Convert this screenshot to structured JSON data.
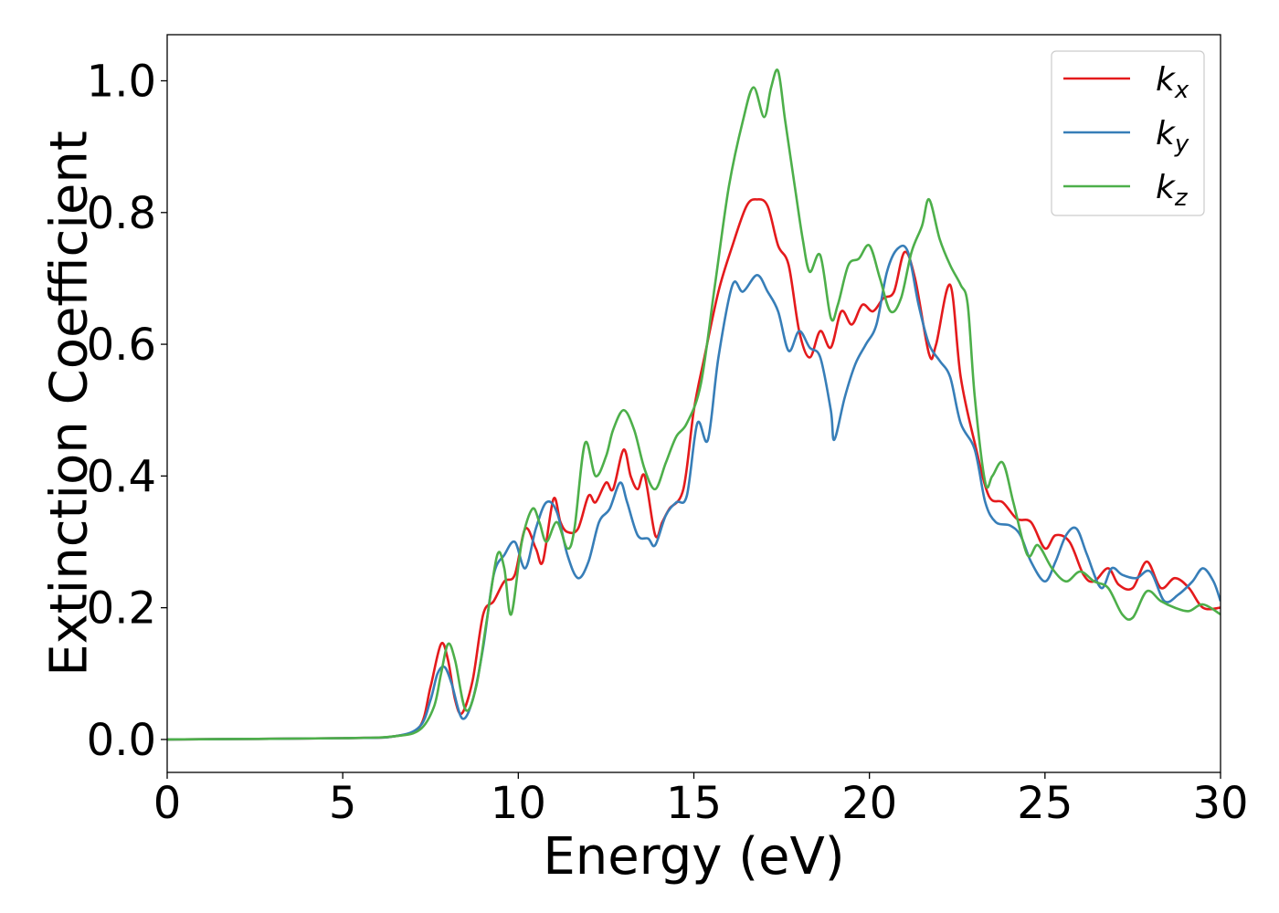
{
  "chart_data": {
    "type": "line",
    "title": "",
    "xlabel": "Energy (eV)",
    "ylabel": "Extinction Coefficient",
    "xlim": [
      0,
      30
    ],
    "ylim": [
      -0.05,
      1.07
    ],
    "xticks": [
      0,
      5,
      10,
      15,
      20,
      25,
      30
    ],
    "xtick_labels": [
      "0",
      "5",
      "10",
      "15",
      "20",
      "25",
      "30"
    ],
    "yticks": [
      0.0,
      0.2,
      0.4,
      0.6,
      0.8,
      1.0
    ],
    "ytick_labels": [
      "0.0",
      "0.2",
      "0.4",
      "0.6",
      "0.8",
      "1.0"
    ],
    "grid": false,
    "legend_position": "top-right",
    "series": [
      {
        "name": "k_x",
        "label_base": "k",
        "label_sub": "x",
        "color": "#e41a1c",
        "points": [
          [
            0,
            0
          ],
          [
            5,
            0.002
          ],
          [
            6.5,
            0.005
          ],
          [
            7.2,
            0.02
          ],
          [
            7.5,
            0.08
          ],
          [
            7.8,
            0.145
          ],
          [
            8.0,
            0.12
          ],
          [
            8.2,
            0.06
          ],
          [
            8.4,
            0.04
          ],
          [
            8.7,
            0.09
          ],
          [
            9.0,
            0.19
          ],
          [
            9.3,
            0.21
          ],
          [
            9.6,
            0.24
          ],
          [
            9.9,
            0.25
          ],
          [
            10.2,
            0.32
          ],
          [
            10.5,
            0.29
          ],
          [
            10.7,
            0.27
          ],
          [
            11.0,
            0.365
          ],
          [
            11.2,
            0.33
          ],
          [
            11.4,
            0.315
          ],
          [
            11.7,
            0.32
          ],
          [
            12.0,
            0.37
          ],
          [
            12.2,
            0.36
          ],
          [
            12.5,
            0.39
          ],
          [
            12.7,
            0.38
          ],
          [
            13.0,
            0.44
          ],
          [
            13.2,
            0.4
          ],
          [
            13.4,
            0.38
          ],
          [
            13.6,
            0.4
          ],
          [
            13.9,
            0.31
          ],
          [
            14.1,
            0.33
          ],
          [
            14.3,
            0.35
          ],
          [
            14.7,
            0.38
          ],
          [
            15.0,
            0.5
          ],
          [
            15.3,
            0.58
          ],
          [
            15.7,
            0.68
          ],
          [
            16.1,
            0.75
          ],
          [
            16.5,
            0.81
          ],
          [
            16.8,
            0.82
          ],
          [
            17.1,
            0.81
          ],
          [
            17.4,
            0.75
          ],
          [
            17.7,
            0.72
          ],
          [
            18.0,
            0.62
          ],
          [
            18.3,
            0.58
          ],
          [
            18.6,
            0.62
          ],
          [
            18.9,
            0.595
          ],
          [
            19.2,
            0.65
          ],
          [
            19.5,
            0.63
          ],
          [
            19.8,
            0.66
          ],
          [
            20.1,
            0.65
          ],
          [
            20.4,
            0.67
          ],
          [
            20.7,
            0.68
          ],
          [
            21.0,
            0.74
          ],
          [
            21.3,
            0.7
          ],
          [
            21.7,
            0.585
          ],
          [
            21.9,
            0.6
          ],
          [
            22.3,
            0.69
          ],
          [
            22.6,
            0.55
          ],
          [
            23.0,
            0.45
          ],
          [
            23.4,
            0.37
          ],
          [
            23.8,
            0.36
          ],
          [
            24.2,
            0.335
          ],
          [
            24.6,
            0.33
          ],
          [
            25.0,
            0.29
          ],
          [
            25.3,
            0.31
          ],
          [
            25.7,
            0.3
          ],
          [
            26.1,
            0.25
          ],
          [
            26.4,
            0.24
          ],
          [
            26.8,
            0.26
          ],
          [
            27.1,
            0.235
          ],
          [
            27.5,
            0.23
          ],
          [
            27.9,
            0.27
          ],
          [
            28.3,
            0.23
          ],
          [
            28.7,
            0.245
          ],
          [
            29.1,
            0.23
          ],
          [
            29.5,
            0.2
          ],
          [
            30.0,
            0.2
          ]
        ]
      },
      {
        "name": "k_y",
        "label_base": "k",
        "label_sub": "y",
        "color": "#377eb8",
        "points": [
          [
            0,
            0
          ],
          [
            5,
            0.002
          ],
          [
            6.5,
            0.005
          ],
          [
            7.2,
            0.02
          ],
          [
            7.5,
            0.06
          ],
          [
            7.7,
            0.1
          ],
          [
            7.9,
            0.11
          ],
          [
            8.1,
            0.085
          ],
          [
            8.4,
            0.032
          ],
          [
            8.7,
            0.06
          ],
          [
            9.0,
            0.14
          ],
          [
            9.3,
            0.25
          ],
          [
            9.6,
            0.28
          ],
          [
            9.9,
            0.3
          ],
          [
            10.2,
            0.26
          ],
          [
            10.5,
            0.32
          ],
          [
            10.8,
            0.36
          ],
          [
            11.1,
            0.345
          ],
          [
            11.4,
            0.28
          ],
          [
            11.7,
            0.245
          ],
          [
            12.0,
            0.27
          ],
          [
            12.3,
            0.33
          ],
          [
            12.6,
            0.35
          ],
          [
            12.9,
            0.39
          ],
          [
            13.1,
            0.36
          ],
          [
            13.4,
            0.31
          ],
          [
            13.7,
            0.305
          ],
          [
            13.9,
            0.295
          ],
          [
            14.2,
            0.34
          ],
          [
            14.5,
            0.36
          ],
          [
            14.8,
            0.37
          ],
          [
            15.1,
            0.48
          ],
          [
            15.4,
            0.455
          ],
          [
            15.7,
            0.58
          ],
          [
            16.1,
            0.69
          ],
          [
            16.4,
            0.68
          ],
          [
            16.8,
            0.705
          ],
          [
            17.1,
            0.68
          ],
          [
            17.4,
            0.65
          ],
          [
            17.7,
            0.59
          ],
          [
            18.0,
            0.62
          ],
          [
            18.3,
            0.595
          ],
          [
            18.6,
            0.58
          ],
          [
            18.9,
            0.5
          ],
          [
            19.0,
            0.455
          ],
          [
            19.3,
            0.52
          ],
          [
            19.6,
            0.57
          ],
          [
            19.9,
            0.6
          ],
          [
            20.2,
            0.63
          ],
          [
            20.5,
            0.71
          ],
          [
            20.8,
            0.745
          ],
          [
            21.1,
            0.74
          ],
          [
            21.4,
            0.66
          ],
          [
            21.7,
            0.6
          ],
          [
            22.0,
            0.575
          ],
          [
            22.3,
            0.55
          ],
          [
            22.6,
            0.48
          ],
          [
            23.0,
            0.44
          ],
          [
            23.3,
            0.36
          ],
          [
            23.6,
            0.33
          ],
          [
            24.0,
            0.325
          ],
          [
            24.3,
            0.31
          ],
          [
            24.6,
            0.27
          ],
          [
            25.0,
            0.24
          ],
          [
            25.3,
            0.27
          ],
          [
            25.6,
            0.31
          ],
          [
            25.9,
            0.32
          ],
          [
            26.2,
            0.28
          ],
          [
            26.6,
            0.23
          ],
          [
            26.9,
            0.26
          ],
          [
            27.2,
            0.25
          ],
          [
            27.6,
            0.245
          ],
          [
            28.0,
            0.255
          ],
          [
            28.4,
            0.21
          ],
          [
            28.8,
            0.22
          ],
          [
            29.2,
            0.24
          ],
          [
            29.5,
            0.26
          ],
          [
            29.8,
            0.24
          ],
          [
            30.0,
            0.21
          ]
        ]
      },
      {
        "name": "k_z",
        "label_base": "k",
        "label_sub": "z",
        "color": "#4daf4a",
        "points": [
          [
            0,
            0
          ],
          [
            5,
            0.002
          ],
          [
            6.5,
            0.005
          ],
          [
            7.2,
            0.015
          ],
          [
            7.6,
            0.05
          ],
          [
            7.8,
            0.1
          ],
          [
            8.0,
            0.145
          ],
          [
            8.2,
            0.12
          ],
          [
            8.5,
            0.045
          ],
          [
            8.8,
            0.08
          ],
          [
            9.1,
            0.18
          ],
          [
            9.4,
            0.28
          ],
          [
            9.6,
            0.26
          ],
          [
            9.8,
            0.19
          ],
          [
            10.1,
            0.3
          ],
          [
            10.4,
            0.35
          ],
          [
            10.6,
            0.33
          ],
          [
            10.8,
            0.3
          ],
          [
            11.1,
            0.33
          ],
          [
            11.4,
            0.29
          ],
          [
            11.6,
            0.32
          ],
          [
            11.9,
            0.45
          ],
          [
            12.2,
            0.4
          ],
          [
            12.5,
            0.43
          ],
          [
            12.7,
            0.47
          ],
          [
            13.0,
            0.5
          ],
          [
            13.3,
            0.47
          ],
          [
            13.6,
            0.41
          ],
          [
            13.9,
            0.38
          ],
          [
            14.2,
            0.42
          ],
          [
            14.5,
            0.46
          ],
          [
            14.8,
            0.48
          ],
          [
            15.2,
            0.54
          ],
          [
            15.6,
            0.69
          ],
          [
            16.0,
            0.84
          ],
          [
            16.4,
            0.94
          ],
          [
            16.7,
            0.99
          ],
          [
            17.0,
            0.945
          ],
          [
            17.2,
            0.99
          ],
          [
            17.4,
            1.015
          ],
          [
            17.6,
            0.94
          ],
          [
            17.9,
            0.83
          ],
          [
            18.1,
            0.76
          ],
          [
            18.3,
            0.71
          ],
          [
            18.6,
            0.735
          ],
          [
            18.9,
            0.64
          ],
          [
            19.1,
            0.66
          ],
          [
            19.4,
            0.72
          ],
          [
            19.7,
            0.73
          ],
          [
            20.0,
            0.75
          ],
          [
            20.3,
            0.7
          ],
          [
            20.6,
            0.65
          ],
          [
            20.9,
            0.67
          ],
          [
            21.2,
            0.74
          ],
          [
            21.5,
            0.78
          ],
          [
            21.7,
            0.82
          ],
          [
            22.0,
            0.76
          ],
          [
            22.3,
            0.72
          ],
          [
            22.6,
            0.69
          ],
          [
            22.8,
            0.66
          ],
          [
            23.0,
            0.52
          ],
          [
            23.3,
            0.39
          ],
          [
            23.5,
            0.4
          ],
          [
            23.8,
            0.42
          ],
          [
            24.1,
            0.36
          ],
          [
            24.5,
            0.28
          ],
          [
            24.8,
            0.295
          ],
          [
            25.2,
            0.26
          ],
          [
            25.6,
            0.24
          ],
          [
            26.0,
            0.255
          ],
          [
            26.4,
            0.24
          ],
          [
            26.8,
            0.23
          ],
          [
            27.2,
            0.19
          ],
          [
            27.5,
            0.185
          ],
          [
            27.9,
            0.225
          ],
          [
            28.3,
            0.21
          ],
          [
            28.7,
            0.2
          ],
          [
            29.1,
            0.195
          ],
          [
            29.5,
            0.205
          ],
          [
            30.0,
            0.19
          ]
        ]
      }
    ]
  }
}
